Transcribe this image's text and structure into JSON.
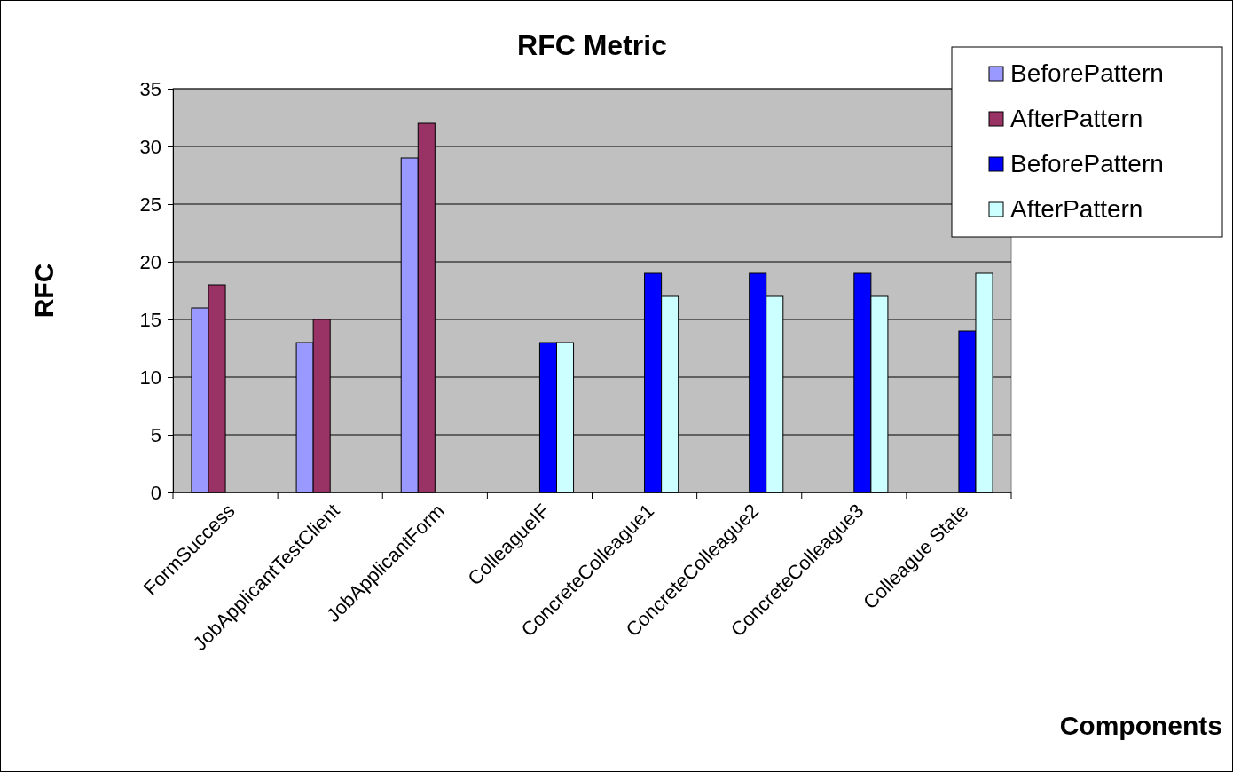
{
  "chart_data": {
    "type": "bar",
    "title": "RFC Metric",
    "xlabel": "Components",
    "ylabel": "RFC",
    "categories": [
      "FormSuccess",
      "JobApplicantTestClient",
      "JobApplicantForm",
      "ColleagueIF",
      "ConcreteColleague1",
      "ConcreteColleague2",
      "ConcreteColleague3",
      "Colleague State"
    ],
    "series": [
      {
        "name": "BeforePattern",
        "color": "#9999ff",
        "values": [
          16,
          13,
          29,
          null,
          null,
          null,
          null,
          null
        ]
      },
      {
        "name": "AfterPattern",
        "color": "#993366",
        "values": [
          18,
          15,
          32,
          null,
          null,
          null,
          null,
          null
        ]
      },
      {
        "name": "BeforePattern",
        "color": "#0000ff",
        "values": [
          null,
          null,
          null,
          13,
          19,
          19,
          19,
          14
        ]
      },
      {
        "name": "AfterPattern",
        "color": "#ccffff",
        "values": [
          null,
          null,
          null,
          13,
          17,
          17,
          17,
          19
        ]
      }
    ],
    "ylim": [
      0,
      35
    ],
    "yticks": [
      0,
      5,
      10,
      15,
      20,
      25,
      30,
      35
    ],
    "grid": "y",
    "legend": "top right"
  }
}
